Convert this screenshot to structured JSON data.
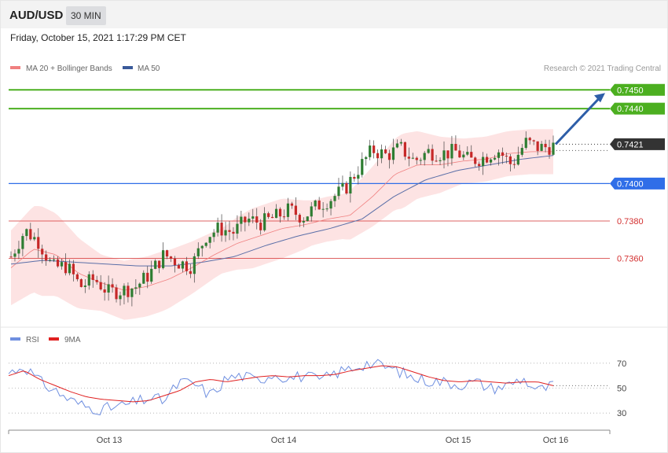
{
  "header": {
    "symbol": "AUD/USD",
    "timeframe": "30 MIN",
    "datetime": "Friday, October 15, 2021 1:17:29 PM CET"
  },
  "legend": {
    "bands_label": "MA 20 + Bollinger Bands",
    "ma50_label": "MA 50",
    "credit": "Research © 2021 Trading Central"
  },
  "colors": {
    "up": "#2e7d32",
    "down": "#c62828",
    "band": "#fde3e3",
    "ma20": "#f08080",
    "ma50": "#5b6fa8",
    "resistance": "#4caf20",
    "support_blue": "#2f6ee8",
    "support_red": "#d32f2f",
    "price": "#333333",
    "rsi": "#6f8fe0",
    "rsi_ma": "#e02020",
    "arrow": "#2e5ea8"
  },
  "chart_data": [
    {
      "type": "line",
      "title": "",
      "ylim": [
        0.7325,
        0.7456
      ],
      "xlabels": [
        "Oct 13",
        "Oct 14",
        "Oct 15",
        "Oct 16"
      ],
      "levels": [
        {
          "value": 0.745,
          "label": "0.7450",
          "kind": "resistance"
        },
        {
          "value": 0.744,
          "label": "0.7440",
          "kind": "resistance"
        },
        {
          "value": 0.7421,
          "label": "0.7421",
          "kind": "price"
        },
        {
          "value": 0.74,
          "label": "0.7400",
          "kind": "support_blue"
        },
        {
          "value": 0.738,
          "label": "0.7380",
          "kind": "support_red"
        },
        {
          "value": 0.736,
          "label": "0.7360",
          "kind": "support_red"
        }
      ],
      "forecast_arrow": {
        "from": 0.7421,
        "to": 0.745
      },
      "close_anchors": [
        0.7361,
        0.7375,
        0.7369,
        0.7355,
        0.7356,
        0.7345,
        0.7349,
        0.7342,
        0.7343,
        0.7345,
        0.7352,
        0.7362,
        0.7358,
        0.7356,
        0.7372,
        0.7376,
        0.7374,
        0.7381,
        0.7379,
        0.7382,
        0.7386,
        0.7382,
        0.7388,
        0.7392,
        0.7397,
        0.7408,
        0.7418,
        0.7415,
        0.7419,
        0.7412,
        0.7417,
        0.7416,
        0.7417,
        0.7412,
        0.7414,
        0.7418,
        0.741,
        0.7422,
        0.7419,
        0.742
      ],
      "ma20_anchors": [
        0.7355,
        0.7365,
        0.7362,
        0.7352,
        0.7347,
        0.7343,
        0.7345,
        0.7349,
        0.7355,
        0.7362,
        0.7368,
        0.7372,
        0.7376,
        0.7378,
        0.7381,
        0.7383,
        0.7393,
        0.7405,
        0.741,
        0.741,
        0.7412,
        0.7413,
        0.7416,
        0.7417,
        0.7417
      ],
      "band_width_anchors": [
        0.002,
        0.0024,
        0.002,
        0.0015,
        0.0016,
        0.0016,
        0.0014,
        0.0012,
        0.0016,
        0.0016,
        0.0012,
        0.0012,
        0.0016,
        0.002,
        0.0016,
        0.0012,
        0.0012,
        0.0012,
        0.0012
      ],
      "ma50_anchors": [
        0.7357,
        0.7359,
        0.7358,
        0.7357,
        0.7356,
        0.7356,
        0.7358,
        0.7361,
        0.7367,
        0.7372,
        0.7376,
        0.7381,
        0.7393,
        0.7402,
        0.7407,
        0.741,
        0.7413,
        0.7415
      ]
    },
    {
      "type": "line",
      "title": "",
      "ylim": [
        20,
        80
      ],
      "yticks": [
        70,
        50,
        30
      ],
      "series": [
        {
          "name": "RSI",
          "anchors": [
            62,
            68,
            55,
            48,
            40,
            35,
            33,
            35,
            38,
            42,
            40,
            55,
            53,
            44,
            58,
            60,
            56,
            62,
            58,
            60,
            56,
            62,
            66,
            70,
            68,
            64,
            58,
            56,
            55,
            53,
            55,
            50,
            52,
            58,
            48,
            52
          ]
        },
        {
          "name": "9MA",
          "anchors": [
            60,
            64,
            57,
            52,
            47,
            43,
            41,
            40,
            39,
            40,
            44,
            48,
            55,
            57,
            55,
            57,
            59,
            60,
            59,
            60,
            60,
            61,
            64,
            66,
            68,
            67,
            63,
            59,
            56,
            55,
            56,
            55,
            54,
            55,
            55,
            52
          ]
        }
      ]
    }
  ]
}
